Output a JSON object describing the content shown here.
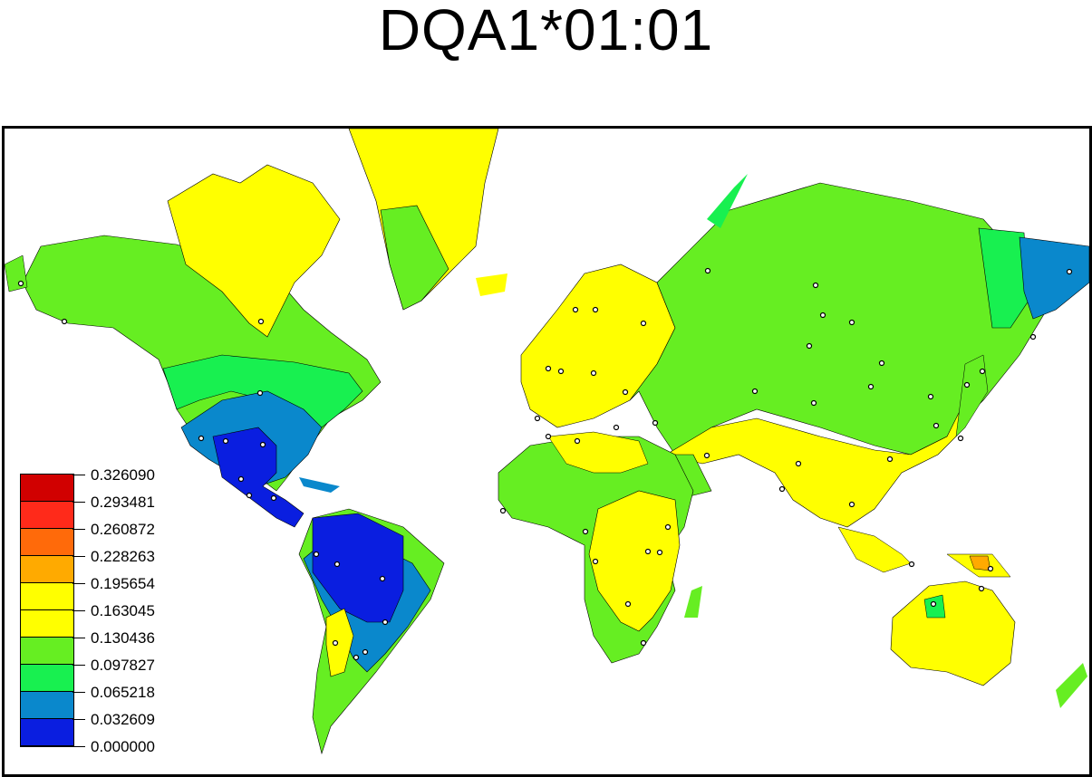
{
  "title": "DQA1*01:01",
  "legend": {
    "labels": [
      "0.326090",
      "0.293481",
      "0.260872",
      "0.228263",
      "0.195654",
      "0.163045",
      "0.130436",
      "0.097827",
      "0.065218",
      "0.032609",
      "0.000000"
    ],
    "colors": [
      "#d10000",
      "#ff2a1a",
      "#ff6a0a",
      "#ffaa00",
      "#ffff00",
      "#ffff00",
      "#66ee22",
      "#18f050",
      "#0a88cc",
      "#0a1ee0"
    ]
  },
  "region_colors": {
    "ocean": "#ffffff",
    "land_green": "#66ee22",
    "land_light_green": "#18f050",
    "land_yellow": "#ffff00",
    "land_blue": "#0a88cc",
    "land_dark_blue": "#0a1ee0",
    "land_orange": "#ffaa00"
  }
}
